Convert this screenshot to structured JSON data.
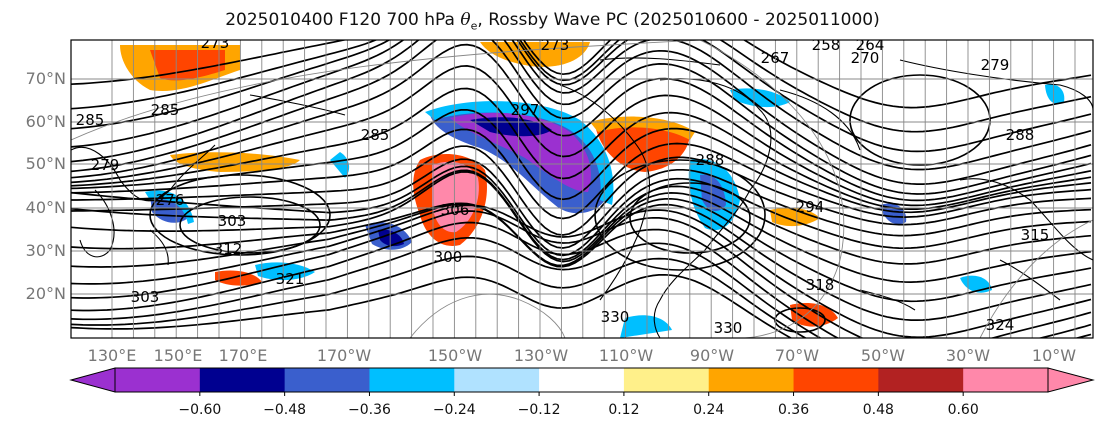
{
  "title": {
    "prefix": "2025010400 F120 700 hPa ",
    "theta": "θ",
    "theta_sub": "e",
    "suffix": ", Rossby Wave PC (2025010600 - 2025011000)"
  },
  "map": {
    "lat_labels": [
      "70°N",
      "60°N",
      "50°N",
      "40°N",
      "30°N",
      "20°N"
    ],
    "lon_labels": [
      "130°E",
      "150°E",
      "170°E",
      "170°W",
      "150°W",
      "130°W",
      "110°W",
      "90°W",
      "70°W",
      "50°W",
      "30°W",
      "10°W"
    ],
    "contour_labels": [
      "273",
      "285",
      "285",
      "285",
      "273",
      "297",
      "267",
      "258",
      "264",
      "279",
      "288",
      "294",
      "303",
      "312",
      "321",
      "306",
      "300",
      "288",
      "330",
      "330",
      "324",
      "315",
      "318",
      "303",
      "279",
      "276",
      "270"
    ]
  },
  "colorbar": {
    "ticks": [
      "−0.60",
      "−0.48",
      "−0.36",
      "−0.24",
      "−0.12",
      "0.12",
      "0.24",
      "0.36",
      "0.48",
      "0.60"
    ],
    "colors": [
      "#9b30d0",
      "#000090",
      "#3a5fcd",
      "#00bfff",
      "#b0e2ff",
      "#ffffff",
      "#fff08a",
      "#ffa500",
      "#ff4500",
      "#b22222",
      "#ff88aa"
    ]
  },
  "style": {
    "contour_color": "#000000",
    "grid_color": "#888888",
    "coast_color": "#000000"
  }
}
